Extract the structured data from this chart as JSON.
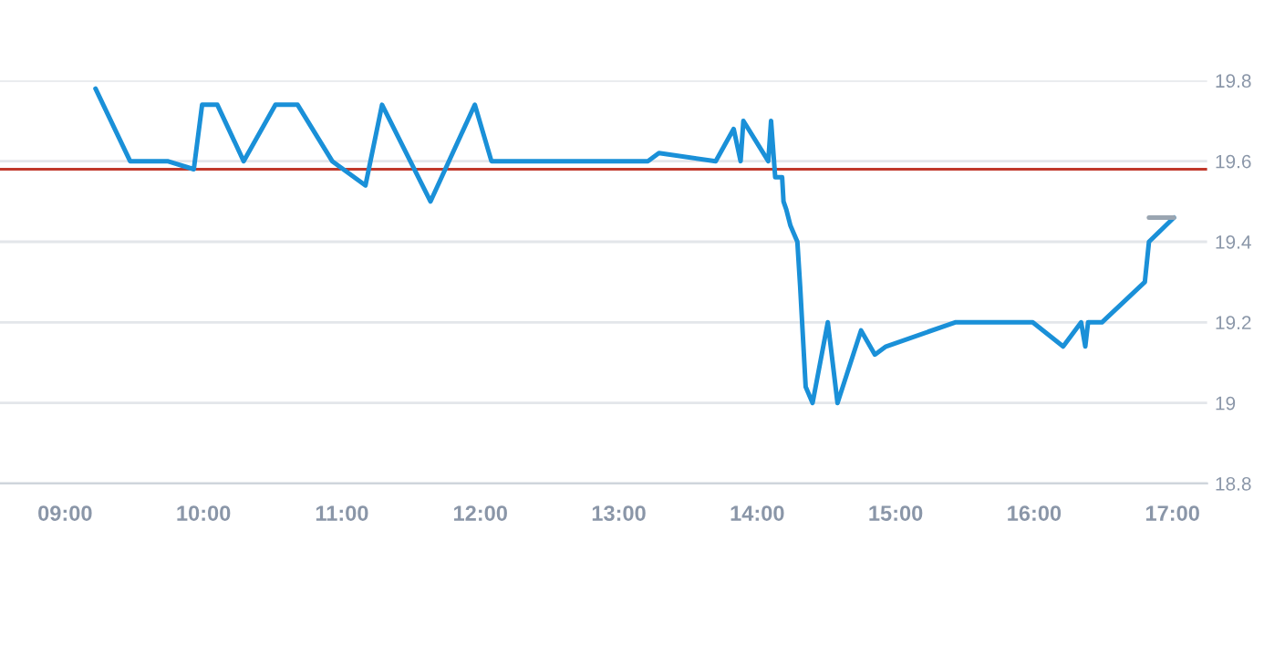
{
  "chart_data": {
    "type": "line",
    "xlim": [
      8.53,
      17.25
    ],
    "ylim": [
      18.8,
      19.8
    ],
    "xticks": [
      {
        "value": 9,
        "label": "09:00"
      },
      {
        "value": 10,
        "label": "10:00"
      },
      {
        "value": 11,
        "label": "11:00"
      },
      {
        "value": 12,
        "label": "12:00"
      },
      {
        "value": 13,
        "label": "13:00"
      },
      {
        "value": 14,
        "label": "14:00"
      },
      {
        "value": 15,
        "label": "15:00"
      },
      {
        "value": 16,
        "label": "16:00"
      },
      {
        "value": 17,
        "label": "17:00"
      }
    ],
    "yticks": [
      18.8,
      19,
      19.2,
      19.4,
      19.6,
      19.8
    ],
    "grid": "y",
    "legend": false,
    "marker": "none",
    "line_style": "solid",
    "series": [
      {
        "color": "#1a90d8",
        "x": [
          9.22,
          9.47,
          9.74,
          9.93,
          9.99,
          10.1,
          10.29,
          10.52,
          10.68,
          10.93,
          11.17,
          11.29,
          11.64,
          11.96,
          12.08,
          13.21,
          13.29,
          13.7,
          13.83,
          13.88,
          13.9,
          14.08,
          14.1,
          14.13,
          14.18,
          14.19,
          14.21,
          14.24,
          14.29,
          14.31,
          14.35,
          14.4,
          14.51,
          14.58,
          14.75,
          14.85,
          14.93,
          15.43,
          15.99,
          16.21,
          16.34,
          16.37,
          16.39,
          16.49,
          16.8,
          16.83,
          17.01
        ],
        "values": [
          19.78,
          19.6,
          19.6,
          19.58,
          19.74,
          19.74,
          19.6,
          19.74,
          19.74,
          19.6,
          19.54,
          19.74,
          19.5,
          19.74,
          19.6,
          19.6,
          19.62,
          19.6,
          19.68,
          19.6,
          19.7,
          19.6,
          19.7,
          19.56,
          19.56,
          19.5,
          19.48,
          19.44,
          19.4,
          19.29,
          19.04,
          19.0,
          19.2,
          19.0,
          19.18,
          19.12,
          19.14,
          19.2,
          19.2,
          19.14,
          19.2,
          19.14,
          19.2,
          19.2,
          19.3,
          19.4,
          19.46
        ]
      },
      {
        "color": "#9aa5b1",
        "x": [
          16.83,
          17.01
        ],
        "values": [
          19.46,
          19.46
        ]
      }
    ],
    "ref_lines": [
      {
        "axis": "y",
        "value": 19.58,
        "color": "#c0392b",
        "line_style": "solid"
      }
    ]
  }
}
